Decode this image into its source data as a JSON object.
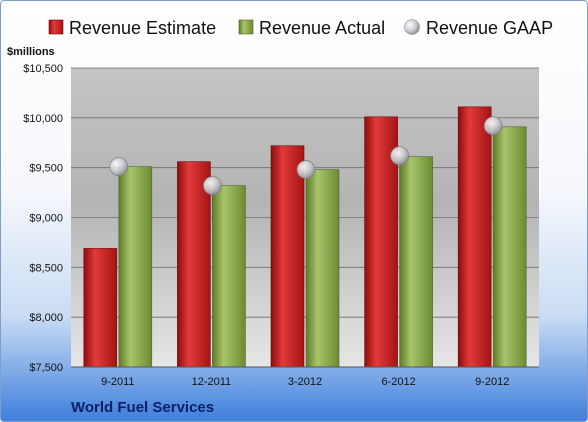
{
  "chart_data": {
    "type": "bar",
    "unit_label": "$millions",
    "company": "World Fuel Services",
    "categories": [
      "9-2011",
      "12-2011",
      "3-2012",
      "6-2012",
      "9-2012"
    ],
    "y_ticks": [
      "$7,500",
      "$8,000",
      "$8,500",
      "$9,000",
      "$9,500",
      "$10,000",
      "$10,500"
    ],
    "ylim": [
      7500,
      10500
    ],
    "grid": true,
    "legend_position": "top",
    "series": [
      {
        "name": "Revenue Estimate",
        "kind": "bar",
        "color": "#c81e1e",
        "values": [
          8690,
          9560,
          9720,
          10010,
          10110
        ]
      },
      {
        "name": "Revenue Actual",
        "kind": "bar",
        "color": "#8caa4a",
        "values": [
          9510,
          9320,
          9480,
          9610,
          9910
        ]
      },
      {
        "name": "Revenue GAAP",
        "kind": "point",
        "color": "#c8c8cc",
        "values": [
          9510,
          9320,
          9480,
          9620,
          9920
        ]
      }
    ]
  }
}
